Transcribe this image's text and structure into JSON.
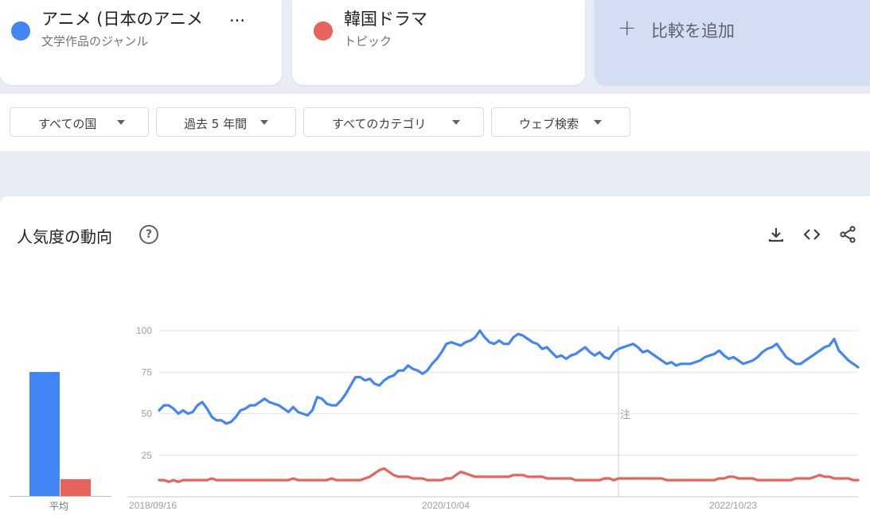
{
  "terms": [
    {
      "title": "アニメ (日本のアニメ",
      "ellipsis": "...",
      "type": "文学作品のジャンル",
      "color": "#4285f4"
    },
    {
      "title": "韓国ドラマ",
      "type": "トピック",
      "color": "#e8635a"
    }
  ],
  "add_compare": {
    "plus": "+",
    "label": "比較を追加"
  },
  "filters": [
    {
      "label": "すべての国"
    },
    {
      "label": "過去 5 年間"
    },
    {
      "label": "すべてのカテゴリ"
    },
    {
      "label": "ウェブ検索"
    }
  ],
  "panel": {
    "title": "人気度の動向",
    "help": "?",
    "icons": [
      "download-icon",
      "embed-code-icon",
      "share-icon"
    ]
  },
  "average": {
    "label": "平均",
    "values": [
      75,
      10
    ],
    "colors": [
      "#4285f4",
      "#e8635a"
    ]
  },
  "annotation_note": "注",
  "chart_data": {
    "type": "line",
    "title": "",
    "xlabel": "",
    "ylabel": "",
    "ylim": [
      0,
      100
    ],
    "yticks": [
      25,
      50,
      75,
      100
    ],
    "xtick_labels": [
      "2018/09/16",
      "2020/10/04",
      "2022/10/23"
    ],
    "grid": true,
    "series": [
      {
        "name": "アニメ (日本のアニメ",
        "color": "#4285f4",
        "x_start": "2018/09/16",
        "x_end": "2023/09/03",
        "values": [
          52,
          55,
          55,
          53,
          50,
          52,
          50,
          51,
          55,
          57,
          53,
          48,
          46,
          46,
          44,
          45,
          48,
          52,
          53,
          55,
          55,
          57,
          59,
          57,
          56,
          55,
          53,
          51,
          54,
          51,
          50,
          49,
          52,
          60,
          59,
          56,
          55,
          55,
          58,
          62,
          67,
          72,
          72,
          70,
          71,
          68,
          67,
          70,
          72,
          73,
          76,
          76,
          79,
          77,
          76,
          74,
          76,
          80,
          83,
          87,
          92,
          93,
          92,
          91,
          93,
          94,
          96,
          100,
          96,
          93,
          92,
          94,
          92,
          92,
          96,
          98,
          97,
          95,
          93,
          92,
          89,
          90,
          87,
          84,
          85,
          83,
          85,
          86,
          88,
          90,
          87,
          85,
          87,
          84,
          83,
          87,
          89,
          90,
          91,
          92,
          90,
          87,
          88,
          86,
          84,
          82,
          80,
          81,
          79,
          80,
          80,
          80,
          81,
          82,
          84,
          85,
          86,
          88,
          85,
          83,
          84,
          82,
          80,
          81,
          82,
          84,
          87,
          89,
          90,
          92,
          88,
          84,
          82,
          80,
          80,
          82,
          84,
          86,
          88,
          90,
          91,
          95,
          88,
          85,
          82,
          80,
          78
        ]
      },
      {
        "name": "韓国ドラマ",
        "color": "#e8635a",
        "x_start": "2018/09/16",
        "x_end": "2023/09/03",
        "values": [
          10,
          10,
          9,
          10,
          9,
          10,
          10,
          10,
          10,
          10,
          10,
          11,
          10,
          10,
          10,
          10,
          10,
          10,
          10,
          10,
          10,
          10,
          10,
          10,
          10,
          10,
          10,
          10,
          11,
          10,
          10,
          10,
          10,
          10,
          10,
          10,
          11,
          10,
          10,
          10,
          10,
          10,
          10,
          11,
          12,
          14,
          16,
          17,
          15,
          13,
          12,
          12,
          12,
          11,
          11,
          11,
          10,
          10,
          10,
          10,
          11,
          11,
          13,
          15,
          14,
          13,
          12,
          12,
          12,
          12,
          12,
          12,
          12,
          12,
          13,
          13,
          13,
          12,
          12,
          12,
          12,
          11,
          11,
          11,
          11,
          11,
          11,
          10,
          10,
          10,
          10,
          10,
          10,
          11,
          11,
          10,
          11,
          11,
          11,
          11,
          11,
          11,
          11,
          11,
          11,
          11,
          10,
          10,
          10,
          10,
          10,
          10,
          10,
          10,
          10,
          10,
          10,
          11,
          11,
          12,
          12,
          11,
          11,
          11,
          11,
          10,
          10,
          10,
          10,
          10,
          10,
          10,
          10,
          11,
          11,
          11,
          11,
          12,
          13,
          12,
          12,
          11,
          11,
          11,
          11,
          10,
          10
        ]
      }
    ]
  }
}
